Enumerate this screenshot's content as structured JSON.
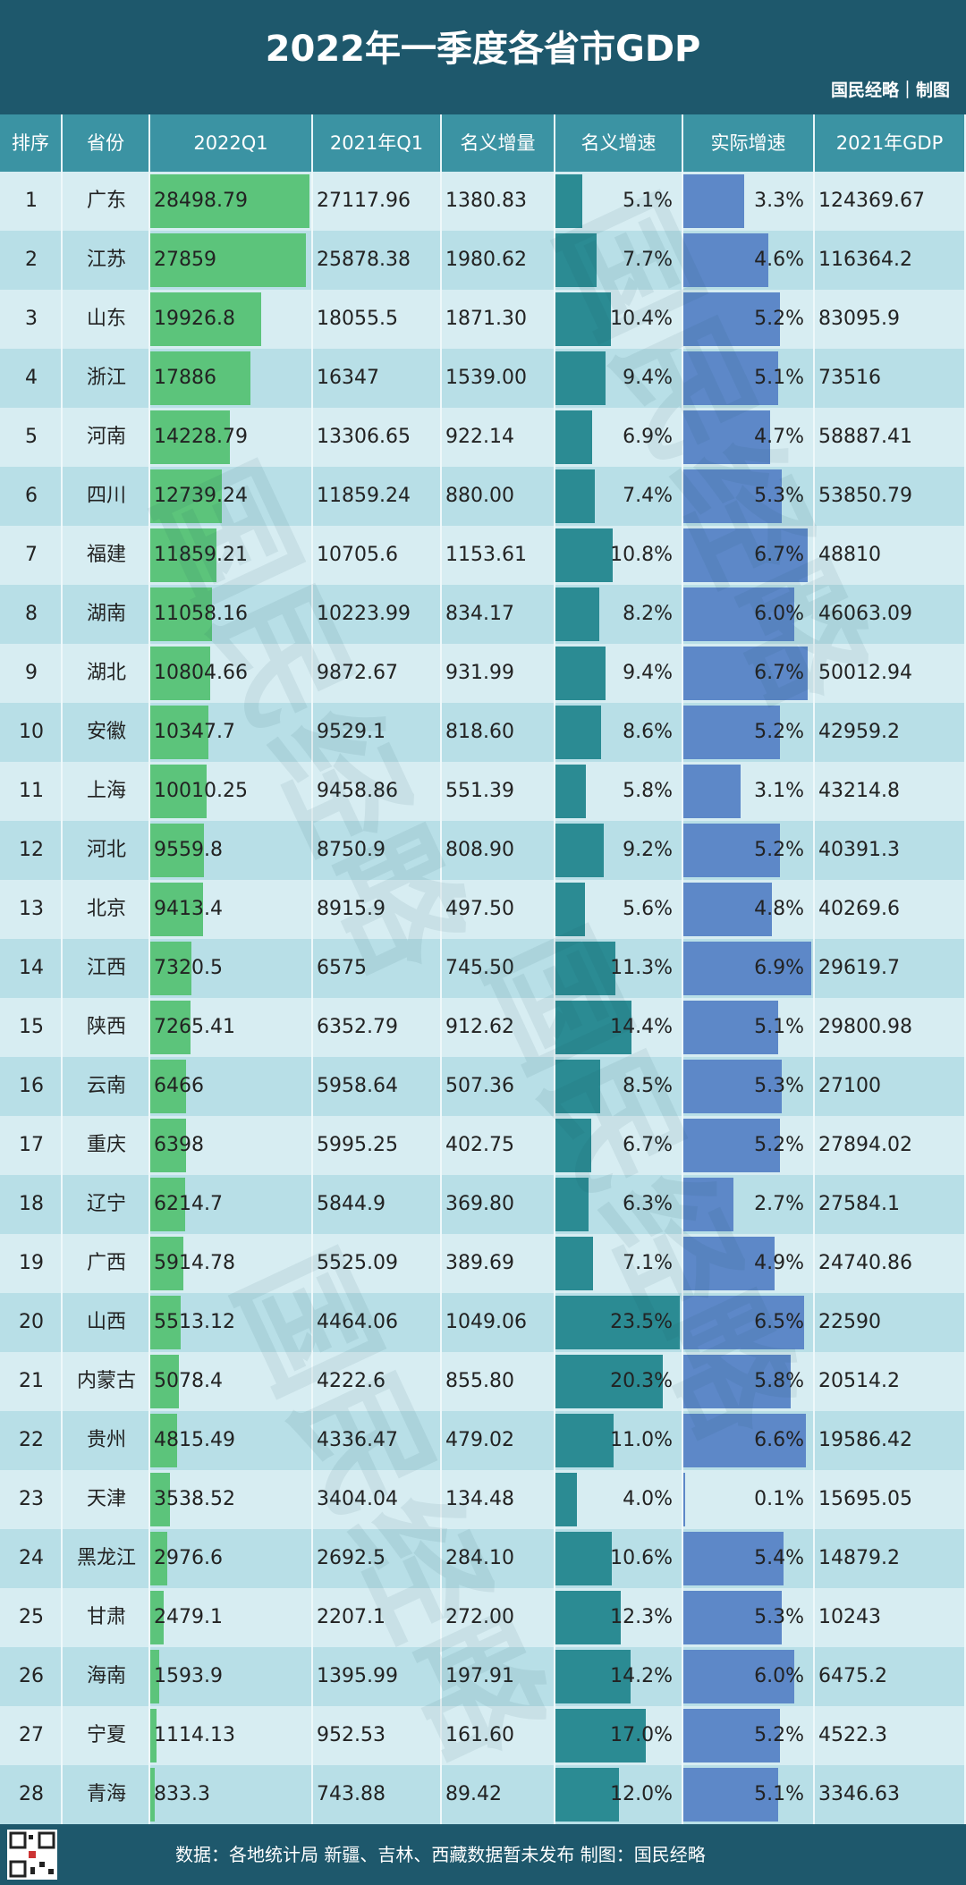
{
  "header": {
    "title": "2022年一季度各省市GDP",
    "brand": "国民经略｜制图"
  },
  "watermark": "国民经略",
  "table": {
    "columns": [
      "排序",
      "省份",
      "2022Q1",
      "2021年Q1",
      "名义增量",
      "名义增速",
      "实际增速",
      "2021年GDP"
    ],
    "rows": [
      [
        1,
        "广东",
        28498.79,
        "27117.96",
        "1380.83",
        {
          "value": 5.1,
          "label": "5.1%"
        },
        {
          "value": 3.3,
          "label": "3.3%"
        },
        "124369.67"
      ],
      [
        2,
        "江苏",
        27859,
        "25878.38",
        "1980.62",
        {
          "value": 7.7,
          "label": "7.7%"
        },
        {
          "value": 4.6,
          "label": "4.6%"
        },
        "116364.2"
      ],
      [
        3,
        "山东",
        19926.8,
        "18055.5",
        "1871.30",
        {
          "value": 10.4,
          "label": "10.4%"
        },
        {
          "value": 5.2,
          "label": "5.2%"
        },
        "83095.9"
      ],
      [
        4,
        "浙江",
        17886,
        "16347",
        "1539.00",
        {
          "value": 9.4,
          "label": "9.4%"
        },
        {
          "value": 5.1,
          "label": "5.1%"
        },
        "73516"
      ],
      [
        5,
        "河南",
        14228.79,
        "13306.65",
        "922.14",
        {
          "value": 6.9,
          "label": "6.9%"
        },
        {
          "value": 4.7,
          "label": "4.7%"
        },
        "58887.41"
      ],
      [
        6,
        "四川",
        12739.24,
        "11859.24",
        "880.00",
        {
          "value": 7.4,
          "label": "7.4%"
        },
        {
          "value": 5.3,
          "label": "5.3%"
        },
        "53850.79"
      ],
      [
        7,
        "福建",
        11859.21,
        "10705.6",
        "1153.61",
        {
          "value": 10.8,
          "label": "10.8%"
        },
        {
          "value": 6.7,
          "label": "6.7%"
        },
        "48810"
      ],
      [
        8,
        "湖南",
        11058.16,
        "10223.99",
        "834.17",
        {
          "value": 8.2,
          "label": "8.2%"
        },
        {
          "value": 6.0,
          "label": "6.0%"
        },
        "46063.09"
      ],
      [
        9,
        "湖北",
        10804.66,
        "9872.67",
        "931.99",
        {
          "value": 9.4,
          "label": "9.4%"
        },
        {
          "value": 6.7,
          "label": "6.7%"
        },
        "50012.94"
      ],
      [
        10,
        "安徽",
        10347.7,
        "9529.1",
        "818.60",
        {
          "value": 8.6,
          "label": "8.6%"
        },
        {
          "value": 5.2,
          "label": "5.2%"
        },
        "42959.2"
      ],
      [
        11,
        "上海",
        10010.25,
        "9458.86",
        "551.39",
        {
          "value": 5.8,
          "label": "5.8%"
        },
        {
          "value": 3.1,
          "label": "3.1%"
        },
        "43214.8"
      ],
      [
        12,
        "河北",
        9559.8,
        "8750.9",
        "808.90",
        {
          "value": 9.2,
          "label": "9.2%"
        },
        {
          "value": 5.2,
          "label": "5.2%"
        },
        "40391.3"
      ],
      [
        13,
        "北京",
        9413.4,
        "8915.9",
        "497.50",
        {
          "value": 5.6,
          "label": "5.6%"
        },
        {
          "value": 4.8,
          "label": "4.8%"
        },
        "40269.6"
      ],
      [
        14,
        "江西",
        7320.5,
        "6575",
        "745.50",
        {
          "value": 11.3,
          "label": "11.3%"
        },
        {
          "value": 6.9,
          "label": "6.9%"
        },
        "29619.7"
      ],
      [
        15,
        "陕西",
        7265.41,
        "6352.79",
        "912.62",
        {
          "value": 14.4,
          "label": "14.4%"
        },
        {
          "value": 5.1,
          "label": "5.1%"
        },
        "29800.98"
      ],
      [
        16,
        "云南",
        6466,
        "5958.64",
        "507.36",
        {
          "value": 8.5,
          "label": "8.5%"
        },
        {
          "value": 5.3,
          "label": "5.3%"
        },
        "27100"
      ],
      [
        17,
        "重庆",
        6398,
        "5995.25",
        "402.75",
        {
          "value": 6.7,
          "label": "6.7%"
        },
        {
          "value": 5.2,
          "label": "5.2%"
        },
        "27894.02"
      ],
      [
        18,
        "辽宁",
        6214.7,
        "5844.9",
        "369.80",
        {
          "value": 6.3,
          "label": "6.3%"
        },
        {
          "value": 2.7,
          "label": "2.7%"
        },
        "27584.1"
      ],
      [
        19,
        "广西",
        5914.78,
        "5525.09",
        "389.69",
        {
          "value": 7.1,
          "label": "7.1%"
        },
        {
          "value": 4.9,
          "label": "4.9%"
        },
        "24740.86"
      ],
      [
        20,
        "山西",
        5513.12,
        "4464.06",
        "1049.06",
        {
          "value": 23.5,
          "label": "23.5%"
        },
        {
          "value": 6.5,
          "label": "6.5%"
        },
        "22590"
      ],
      [
        21,
        "内蒙古",
        5078.4,
        "4222.6",
        "855.80",
        {
          "value": 20.3,
          "label": "20.3%"
        },
        {
          "value": 5.8,
          "label": "5.8%"
        },
        "20514.2"
      ],
      [
        22,
        "贵州",
        4815.49,
        "4336.47",
        "479.02",
        {
          "value": 11.0,
          "label": "11.0%"
        },
        {
          "value": 6.6,
          "label": "6.6%"
        },
        "19586.42"
      ],
      [
        23,
        "天津",
        3538.52,
        "3404.04",
        "134.48",
        {
          "value": 4.0,
          "label": "4.0%"
        },
        {
          "value": 0.1,
          "label": "0.1%"
        },
        "15695.05"
      ],
      [
        24,
        "黑龙江",
        2976.6,
        "2692.5",
        "284.10",
        {
          "value": 10.6,
          "label": "10.6%"
        },
        {
          "value": 5.4,
          "label": "5.4%"
        },
        "14879.2"
      ],
      [
        25,
        "甘肃",
        2479.1,
        "2207.1",
        "272.00",
        {
          "value": 12.3,
          "label": "12.3%"
        },
        {
          "value": 5.3,
          "label": "5.3%"
        },
        "10243"
      ],
      [
        26,
        "海南",
        1593.9,
        "1395.99",
        "197.91",
        {
          "value": 14.2,
          "label": "14.2%"
        },
        {
          "value": 6.0,
          "label": "6.0%"
        },
        "6475.2"
      ],
      [
        27,
        "宁夏",
        1114.13,
        "952.53",
        "161.60",
        {
          "value": 17.0,
          "label": "17.0%"
        },
        {
          "value": 5.2,
          "label": "5.2%"
        },
        "4522.3"
      ],
      [
        28,
        "青海",
        833.3,
        "743.88",
        "89.42",
        {
          "value": 12.0,
          "label": "12.0%"
        },
        {
          "value": 5.1,
          "label": "5.1%"
        },
        "3346.63"
      ]
    ]
  },
  "footer": {
    "source": "数据：各地统计局  新疆、吉林、西藏数据暂未发布  制图：国民经略"
  }
}
